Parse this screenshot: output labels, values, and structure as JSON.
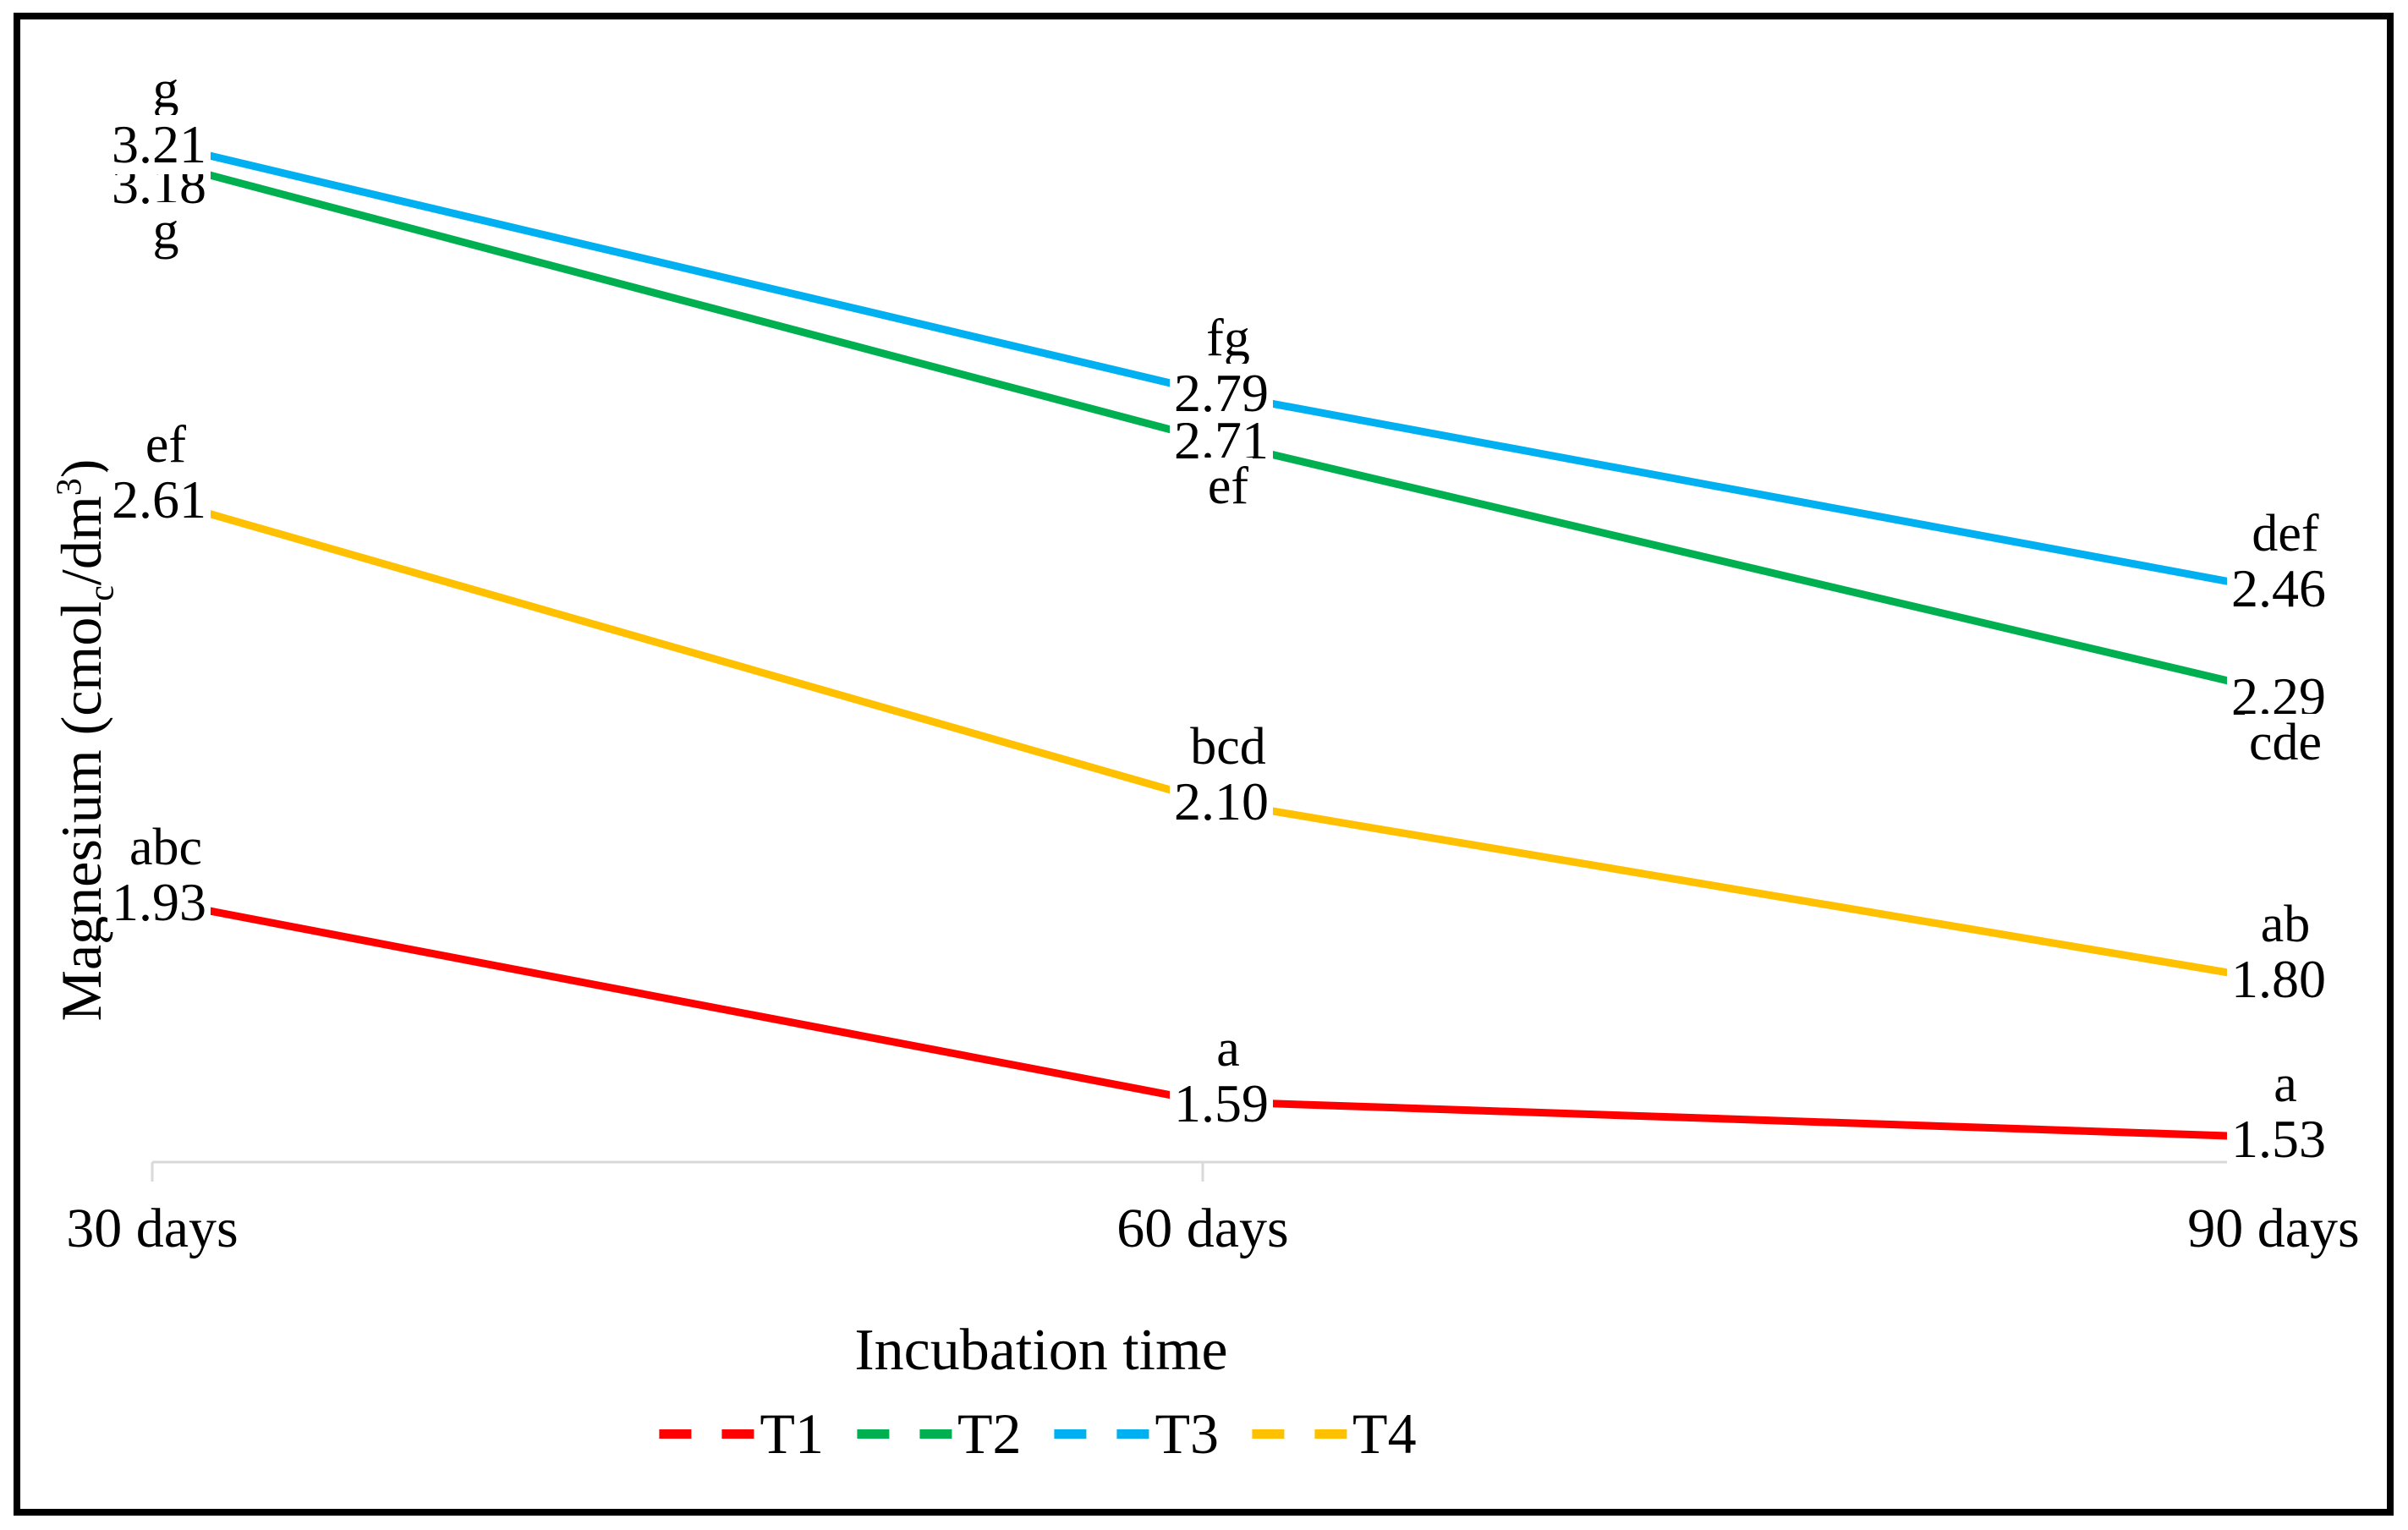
{
  "chart_data": {
    "type": "line",
    "title": "",
    "xlabel": "Incubation time",
    "ylabel": "Magnesium (cmolc/dm3)",
    "ylabel_parts": {
      "prefix": "Magnesium (cmol",
      "subscript": "c",
      "mid": "/dm",
      "superscript": "3",
      "suffix": ")"
    },
    "categories": [
      "30 days",
      "60 days",
      "90 days"
    ],
    "series": [
      {
        "name": "T1",
        "color": "#FF0000",
        "values": [
          1.93,
          1.59,
          1.53
        ],
        "value_labels": [
          "1.93",
          "1.59",
          "1.53"
        ],
        "letters": [
          "abc",
          "a",
          "a"
        ],
        "letter_positions": [
          "above",
          "above",
          "above"
        ]
      },
      {
        "name": "T2",
        "color": "#00B050",
        "values": [
          3.18,
          2.71,
          2.29
        ],
        "value_labels": [
          "3.18",
          "2.71",
          "2.29"
        ],
        "letters": [
          "g",
          "ef",
          "cde"
        ],
        "letter_positions": [
          "below",
          "below",
          "below"
        ]
      },
      {
        "name": "T3",
        "color": "#00B0F0",
        "values": [
          3.21,
          2.79,
          2.46
        ],
        "value_labels": [
          "3.21",
          "2.79",
          "2.46"
        ],
        "letters": [
          "g",
          "fg",
          "def"
        ],
        "letter_positions": [
          "above",
          "above",
          "above"
        ]
      },
      {
        "name": "T4",
        "color": "#FFC000",
        "values": [
          2.61,
          2.1,
          1.8
        ],
        "value_labels": [
          "2.61",
          "2.10",
          "1.80"
        ],
        "letters": [
          "ef",
          "bcd",
          "ab"
        ],
        "letter_positions": [
          "above",
          "above",
          "above"
        ]
      }
    ],
    "legend": [
      "T1",
      "T2",
      "T3",
      "T4"
    ],
    "legend_position": "bottom",
    "grid": false,
    "y_axis_labels_visible": false,
    "ylim": [
      1.49,
      3.5
    ],
    "axis_color": "#D9D9D9",
    "frame_color": "#000000",
    "line_style": "solid",
    "legend_key_style": "dashed"
  }
}
